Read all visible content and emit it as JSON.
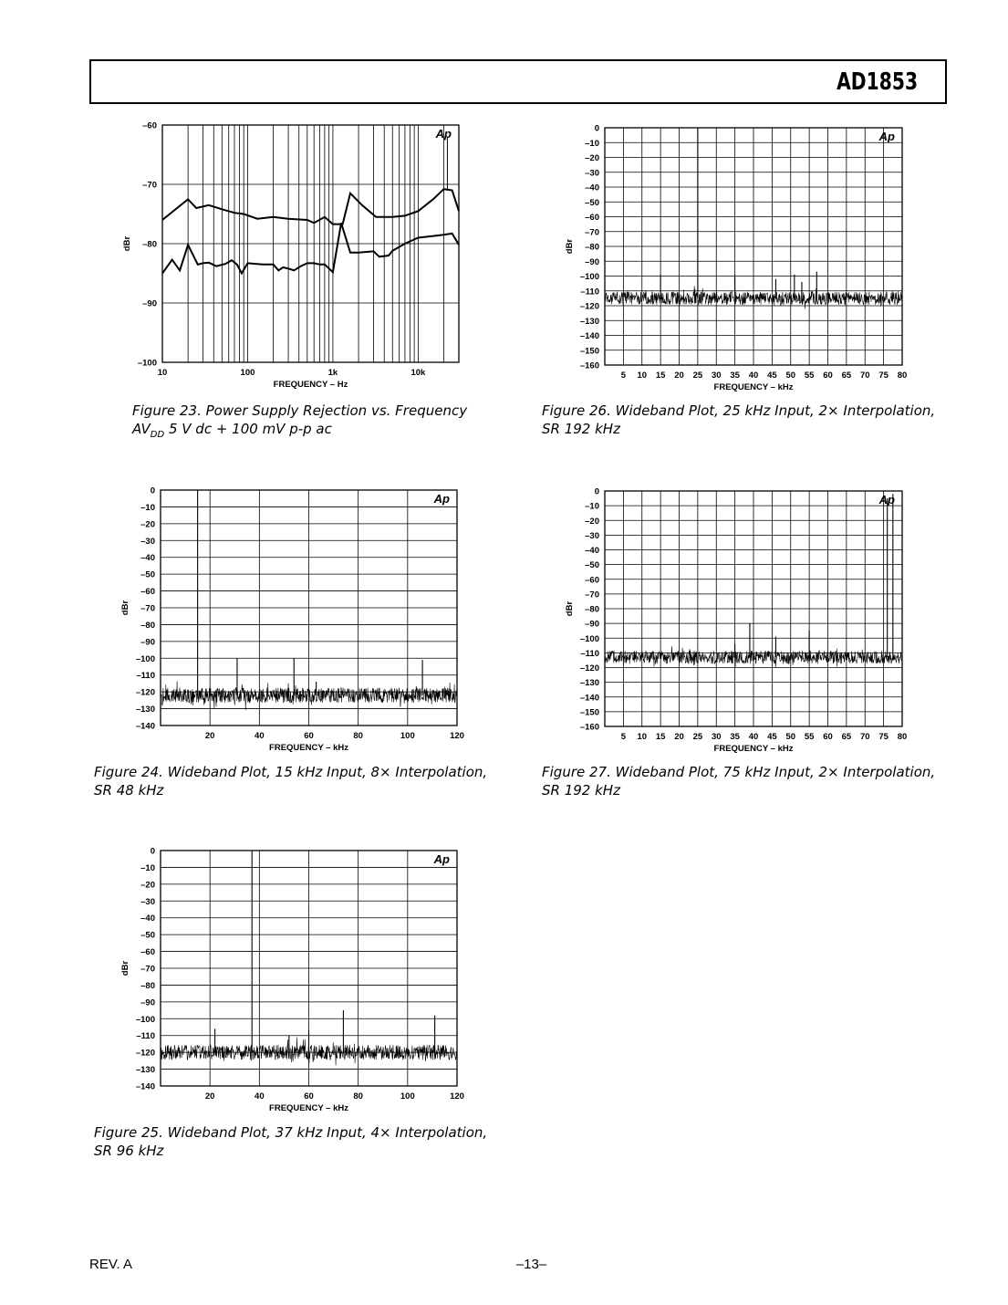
{
  "header": {
    "part_number": "AD1853"
  },
  "footer": {
    "revision": "REV. A",
    "page": "–13–"
  },
  "watermark": "Ap",
  "captions": {
    "fig23_line1": "Figure 23.  Power Supply Rejection vs. Frequency",
    "fig23_line2_pre": "AV",
    "fig23_line2_sub": "DD",
    "fig23_line2_post": " 5 V dc + 100 mV p-p ac",
    "fig24_line1": "Figure 24.  Wideband Plot, 15 kHz Input, 8× Interpolation,",
    "fig24_line2": "SR 48 kHz",
    "fig25_line1": "Figure 25.  Wideband Plot, 37 kHz Input, 4× Interpolation,",
    "fig25_line2": "SR 96 kHz",
    "fig26_line1": "Figure 26.  Wideband Plot, 25 kHz Input, 2× Interpolation,",
    "fig26_line2": "SR 192 kHz",
    "fig27_line1": "Figure 27.  Wideband Plot, 75 kHz Input, 2× Interpolation,",
    "fig27_line2": "SR 192 kHz"
  },
  "chart_data": [
    {
      "id": "fig23",
      "type": "line",
      "xscale": "log",
      "xlim": [
        10,
        30000
      ],
      "ylim": [
        -100,
        -60
      ],
      "xlabel": "FREQUENCY – Hz",
      "ylabel": "dBr",
      "xticks": [
        10,
        100,
        1000,
        10000
      ],
      "xtick_labels": [
        "10",
        "100",
        "1k",
        "10k"
      ],
      "yticks": [
        -60,
        -70,
        -80,
        -90,
        -100
      ],
      "ytick_labels": [
        "–60",
        "–70",
        "–80",
        "–90",
        "–100"
      ],
      "grid": true,
      "series": [
        {
          "x": [
            10,
            20,
            25,
            35,
            50,
            70,
            90,
            130,
            200,
            300,
            500,
            600,
            800,
            1000,
            1300,
            1600,
            2200,
            3200,
            5000,
            7000,
            10000,
            15000,
            20000,
            25000,
            30000
          ],
          "y": [
            -76,
            -72.5,
            -74,
            -73.5,
            -74.2,
            -74.8,
            -75,
            -75.8,
            -75.5,
            -75.8,
            -76,
            -76.5,
            -75.5,
            -76.7,
            -76.7,
            -71.5,
            -73.5,
            -75.5,
            -75.5,
            -75.3,
            -74.5,
            -72.5,
            -70.8,
            -71,
            -74.5
          ]
        },
        {
          "x": [
            10,
            13,
            16,
            20,
            26,
            30,
            35,
            43,
            55,
            65,
            75,
            85,
            100,
            150,
            200,
            230,
            260,
            300,
            350,
            420,
            500,
            600,
            700,
            800,
            1000,
            1250,
            1600,
            2000,
            3000,
            3500,
            4500,
            5000,
            7000,
            10000,
            15000,
            20000,
            25000,
            30000
          ],
          "y": [
            -85,
            -82.7,
            -84.5,
            -80.2,
            -83.5,
            -83.3,
            -83.2,
            -83.8,
            -83.4,
            -82.8,
            -83.5,
            -85,
            -83.3,
            -83.5,
            -83.5,
            -84.5,
            -84,
            -84.2,
            -84.5,
            -83.8,
            -83.3,
            -83.3,
            -83.5,
            -83.5,
            -84.8,
            -76.5,
            -81.5,
            -81.5,
            -81.3,
            -82.2,
            -82,
            -81.2,
            -80,
            -79,
            -78.7,
            -78.5,
            -78.3,
            -80.2
          ]
        }
      ]
    },
    {
      "id": "fig24",
      "type": "line",
      "xlim": [
        0,
        120
      ],
      "ylim": [
        -140,
        0
      ],
      "xlabel": "FREQUENCY – kHz",
      "ylabel": "dBr",
      "xticks": [
        20,
        40,
        60,
        80,
        100,
        120
      ],
      "yticks": [
        0,
        -10,
        -20,
        -30,
        -40,
        -50,
        -60,
        -70,
        -80,
        -90,
        -100,
        -110,
        -120,
        -130,
        -140
      ],
      "grid": true,
      "noise_floor_dBr": -122,
      "spikes": [
        {
          "x": 15,
          "y": 0
        },
        {
          "x": 31,
          "y": -100
        },
        {
          "x": 54,
          "y": -100
        },
        {
          "x": 63,
          "y": -114
        },
        {
          "x": 106,
          "y": -101
        }
      ]
    },
    {
      "id": "fig25",
      "type": "line",
      "xlim": [
        0,
        120
      ],
      "ylim": [
        -140,
        0
      ],
      "xlabel": "FREQUENCY – kHz",
      "ylabel": "dBr",
      "xticks": [
        20,
        40,
        60,
        80,
        100,
        120
      ],
      "yticks": [
        0,
        -10,
        -20,
        -30,
        -40,
        -50,
        -60,
        -70,
        -80,
        -90,
        -100,
        -110,
        -120,
        -130,
        -140
      ],
      "grid": true,
      "noise_floor_dBr": -120,
      "spikes": [
        {
          "x": 22,
          "y": -106
        },
        {
          "x": 37,
          "y": 0
        },
        {
          "x": 52,
          "y": -110
        },
        {
          "x": 60,
          "y": -107
        },
        {
          "x": 74,
          "y": -95
        },
        {
          "x": 111,
          "y": -98
        }
      ]
    },
    {
      "id": "fig26",
      "type": "line",
      "xlim": [
        0,
        80
      ],
      "ylim": [
        -160,
        0
      ],
      "xlabel": "FREQUENCY – kHz",
      "ylabel": "dBr",
      "xticks": [
        5,
        10,
        15,
        20,
        25,
        30,
        35,
        40,
        45,
        50,
        55,
        60,
        65,
        70,
        75,
        80
      ],
      "yticks": [
        0,
        -10,
        -20,
        -30,
        -40,
        -50,
        -60,
        -70,
        -80,
        -90,
        -100,
        -110,
        -120,
        -130,
        -140,
        -150,
        -160
      ],
      "grid": true,
      "noise_floor_dBr": -115,
      "spikes": [
        {
          "x": 15,
          "y": -99
        },
        {
          "x": 25,
          "y": 0
        },
        {
          "x": 35,
          "y": -99
        },
        {
          "x": 46,
          "y": -102
        },
        {
          "x": 51,
          "y": -99
        },
        {
          "x": 53,
          "y": -104
        },
        {
          "x": 57,
          "y": -97
        }
      ]
    },
    {
      "id": "fig27",
      "type": "line",
      "xlim": [
        0,
        80
      ],
      "ylim": [
        -160,
        0
      ],
      "xlabel": "FREQUENCY – kHz",
      "ylabel": "dBr",
      "xticks": [
        5,
        10,
        15,
        20,
        25,
        30,
        35,
        40,
        45,
        50,
        55,
        60,
        65,
        70,
        75,
        80
      ],
      "yticks": [
        0,
        -10,
        -20,
        -30,
        -40,
        -50,
        -60,
        -70,
        -80,
        -90,
        -100,
        -110,
        -120,
        -130,
        -140,
        -150,
        -160
      ],
      "grid": true,
      "noise_floor_dBr": -113,
      "spikes": [
        {
          "x": 10,
          "y": -109
        },
        {
          "x": 35,
          "y": -104
        },
        {
          "x": 39,
          "y": -90
        },
        {
          "x": 46,
          "y": -99
        },
        {
          "x": 55,
          "y": -95
        },
        {
          "x": 76,
          "y": -5
        },
        {
          "x": 77.5,
          "y": -2
        }
      ]
    }
  ]
}
